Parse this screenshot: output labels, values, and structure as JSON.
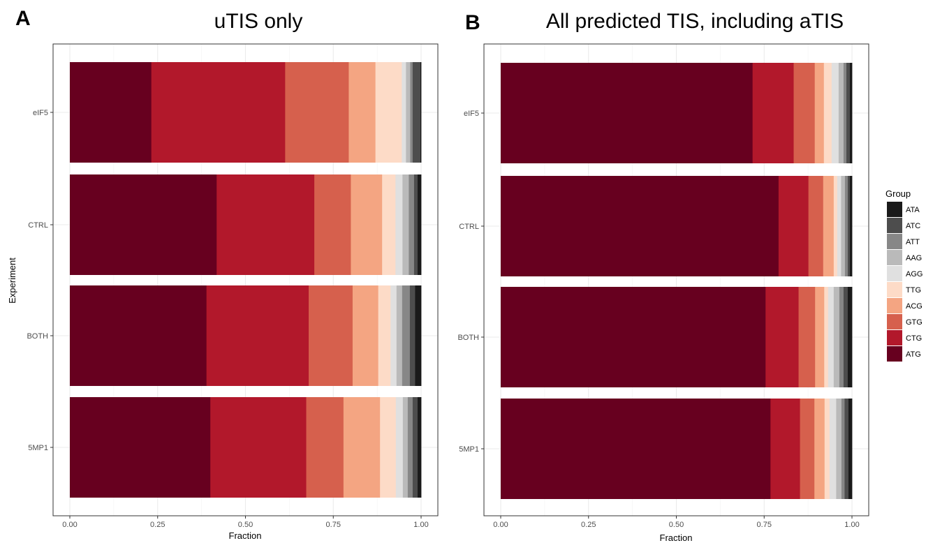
{
  "figure": {
    "panel_a": {
      "letter": "A",
      "title": "uTIS only"
    },
    "panel_b": {
      "letter": "B",
      "title": "All predicted TIS, including aTIS"
    },
    "ylabel": "Experiment",
    "xlabel": "Fraction",
    "legend_title": "Group"
  },
  "chart_data": [
    {
      "type": "bar",
      "orientation": "horizontal",
      "stacked": true,
      "title": "uTIS only",
      "xlabel": "Fraction",
      "ylabel": "Experiment",
      "xlim": [
        0,
        1
      ],
      "xticks": [
        "0.00",
        "0.25",
        "0.50",
        "0.75",
        "1.00"
      ],
      "grid": true,
      "categories": [
        "eIF5",
        "CTRL",
        "BOTH",
        "5MP1"
      ],
      "series": [
        {
          "name": "ATG",
          "color": "#67001f",
          "values": [
            0.232,
            0.418,
            0.389,
            0.4
          ]
        },
        {
          "name": "CTG",
          "color": "#b2182b",
          "values": [
            0.381,
            0.278,
            0.291,
            0.273
          ]
        },
        {
          "name": "GTG",
          "color": "#d6604d",
          "values": [
            0.181,
            0.104,
            0.125,
            0.106
          ]
        },
        {
          "name": "ACG",
          "color": "#f4a582",
          "values": [
            0.076,
            0.089,
            0.073,
            0.104
          ]
        },
        {
          "name": "TTG",
          "color": "#fddbc7",
          "values": [
            0.075,
            0.038,
            0.035,
            0.045
          ]
        },
        {
          "name": "AGG",
          "color": "#e0e0e0",
          "values": [
            0.012,
            0.02,
            0.017,
            0.02
          ]
        },
        {
          "name": "AAG",
          "color": "#bababa",
          "values": [
            0.012,
            0.018,
            0.016,
            0.014
          ]
        },
        {
          "name": "ATT",
          "color": "#878787",
          "values": [
            0.007,
            0.015,
            0.022,
            0.014
          ]
        },
        {
          "name": "ATC",
          "color": "#4d4d4d",
          "values": [
            0.022,
            0.01,
            0.015,
            0.014
          ]
        },
        {
          "name": "ATA",
          "color": "#1a1a1a",
          "values": [
            0.002,
            0.01,
            0.017,
            0.01
          ]
        }
      ]
    },
    {
      "type": "bar",
      "orientation": "horizontal",
      "stacked": true,
      "title": "All predicted TIS, including aTIS",
      "xlabel": "Fraction",
      "xlim": [
        0,
        1
      ],
      "xticks": [
        "0.00",
        "0.25",
        "0.50",
        "0.75",
        "1.00"
      ],
      "grid": true,
      "categories": [
        "eIF5",
        "CTRL",
        "BOTH",
        "5MP1"
      ],
      "series": [
        {
          "name": "ATG",
          "color": "#67001f",
          "values": [
            0.717,
            0.791,
            0.754,
            0.768
          ]
        },
        {
          "name": "CTG",
          "color": "#b2182b",
          "values": [
            0.117,
            0.085,
            0.094,
            0.084
          ]
        },
        {
          "name": "GTG",
          "color": "#d6604d",
          "values": [
            0.06,
            0.042,
            0.047,
            0.041
          ]
        },
        {
          "name": "ACG",
          "color": "#f4a582",
          "values": [
            0.026,
            0.03,
            0.026,
            0.029
          ]
        },
        {
          "name": "TTG",
          "color": "#fddbc7",
          "values": [
            0.022,
            0.01,
            0.011,
            0.014
          ]
        },
        {
          "name": "AGG",
          "color": "#e0e0e0",
          "values": [
            0.02,
            0.011,
            0.016,
            0.019
          ]
        },
        {
          "name": "AAG",
          "color": "#bababa",
          "values": [
            0.014,
            0.011,
            0.016,
            0.015
          ]
        },
        {
          "name": "ATT",
          "color": "#878787",
          "values": [
            0.008,
            0.008,
            0.012,
            0.009
          ]
        },
        {
          "name": "ATC",
          "color": "#4d4d4d",
          "values": [
            0.01,
            0.006,
            0.012,
            0.011
          ]
        },
        {
          "name": "ATA",
          "color": "#1a1a1a",
          "values": [
            0.006,
            0.006,
            0.012,
            0.01
          ]
        }
      ]
    }
  ],
  "legend": {
    "title": "Group",
    "placement": "right",
    "items": [
      {
        "label": "ATA",
        "color": "#1a1a1a"
      },
      {
        "label": "ATC",
        "color": "#4d4d4d"
      },
      {
        "label": "ATT",
        "color": "#878787"
      },
      {
        "label": "AAG",
        "color": "#bababa"
      },
      {
        "label": "AGG",
        "color": "#e0e0e0"
      },
      {
        "label": "TTG",
        "color": "#fddbc7"
      },
      {
        "label": "ACG",
        "color": "#f4a582"
      },
      {
        "label": "GTG",
        "color": "#d6604d"
      },
      {
        "label": "CTG",
        "color": "#b2182b"
      },
      {
        "label": "ATG",
        "color": "#67001f"
      }
    ]
  }
}
